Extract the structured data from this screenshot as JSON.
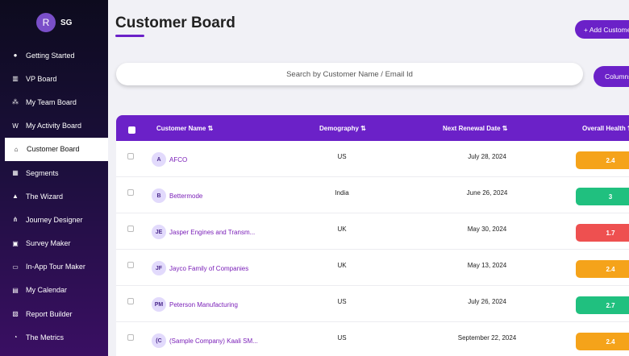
{
  "user": {
    "avatar_letter": "R",
    "initials": "SG"
  },
  "sidebar": {
    "items": [
      {
        "label": "Getting Started",
        "icon": "rocket-icon",
        "glyph": "●"
      },
      {
        "label": "VP Board",
        "icon": "bar-chart-icon",
        "glyph": "▥"
      },
      {
        "label": "My Team Board",
        "icon": "team-icon",
        "glyph": "⁂"
      },
      {
        "label": "My Activity Board",
        "icon": "activity-icon",
        "glyph": "W"
      },
      {
        "label": "Customer Board",
        "icon": "home-icon",
        "glyph": "⌂",
        "active": true
      },
      {
        "label": "Segments",
        "icon": "grid-icon",
        "glyph": "▦"
      },
      {
        "label": "The Wizard",
        "icon": "wizard-icon",
        "glyph": "▲"
      },
      {
        "label": "Journey Designer",
        "icon": "sitemap-icon",
        "glyph": "⋔"
      },
      {
        "label": "Survey Maker",
        "icon": "survey-icon",
        "glyph": "▣"
      },
      {
        "label": "In-App Tour Maker",
        "icon": "window-icon",
        "glyph": "▭"
      },
      {
        "label": "My Calendar",
        "icon": "calendar-icon",
        "glyph": "▤"
      },
      {
        "label": "Report Builder",
        "icon": "report-icon",
        "glyph": "▧"
      },
      {
        "label": "The Metrics",
        "icon": "gauge-icon",
        "glyph": "◔"
      }
    ]
  },
  "header": {
    "title": "Customer Board",
    "add_label": "+ Add Customer"
  },
  "search": {
    "placeholder": "Search by Customer Name / Email Id"
  },
  "columns_label": "Columns",
  "table": {
    "headers": {
      "name": "Customer Name ⇅",
      "demography": "Demography ⇅",
      "renewal": "Next Renewal Date ⇅",
      "health": "Overall Health ⇅"
    },
    "rows": [
      {
        "initials": "A",
        "name": "AFCO",
        "demography": "US",
        "renewal": "July 28, 2024",
        "health": "2.4",
        "health_color": "#f5a31a"
      },
      {
        "initials": "B",
        "name": "Bettermode",
        "demography": "India",
        "renewal": "June 26, 2024",
        "health": "3",
        "health_color": "#20c07f"
      },
      {
        "initials": "JE",
        "name": "Jasper Engines and Transm...",
        "demography": "UK",
        "renewal": "May 30, 2024",
        "health": "1.7",
        "health_color": "#ee5050"
      },
      {
        "initials": "JF",
        "name": "Jayco Family of Companies",
        "demography": "UK",
        "renewal": "May 13, 2024",
        "health": "2.4",
        "health_color": "#f5a31a"
      },
      {
        "initials": "PM",
        "name": "Peterson Manufacturing",
        "demography": "US",
        "renewal": "July 26, 2024",
        "health": "2.7",
        "health_color": "#20c07f"
      },
      {
        "initials": "(C",
        "name": "(Sample Company) Kaali SM...",
        "demography": "US",
        "renewal": "September 22, 2024",
        "health": "2.4",
        "health_color": "#f5a31a"
      }
    ]
  }
}
